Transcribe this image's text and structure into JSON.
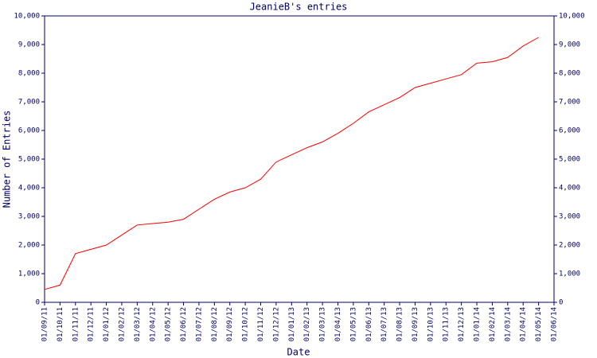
{
  "chart_data": {
    "type": "line",
    "title": "JeanieB's entries",
    "x_label": "Date",
    "y_label": "Number of Entries",
    "categories": [
      "01/09/11",
      "01/10/11",
      "01/11/11",
      "01/12/11",
      "01/01/12",
      "01/02/12",
      "01/03/12",
      "01/04/12",
      "01/05/12",
      "01/06/12",
      "01/07/12",
      "01/08/12",
      "01/09/12",
      "01/10/12",
      "01/11/12",
      "01/12/12",
      "01/01/13",
      "01/02/13",
      "01/03/13",
      "01/04/13",
      "01/05/13",
      "01/06/13",
      "01/07/13",
      "01/08/13",
      "01/09/13",
      "01/10/13",
      "01/11/13",
      "01/12/13",
      "01/01/14",
      "01/02/14",
      "01/03/14",
      "01/04/14",
      "01/05/14",
      "01/06/14"
    ],
    "series": [
      {
        "name": "Entries",
        "color": "#ff0000",
        "values": [
          450,
          600,
          1700,
          1850,
          2000,
          2350,
          2700,
          2750,
          2800,
          2900,
          3250,
          3600,
          3850,
          4000,
          4300,
          4900,
          5150,
          5400,
          5600,
          5900,
          6250,
          6650,
          6900,
          7150,
          7500,
          7650,
          7800,
          7950,
          8350,
          8400,
          8550,
          8950,
          9250,
          null
        ]
      }
    ],
    "ylim": [
      0,
      10000
    ],
    "yticks": [
      0,
      {
        "value": 1000,
        "label": "1,000"
      },
      {
        "value": 2000,
        "label": "2,000"
      },
      {
        "value": 3000,
        "label": "3,000"
      },
      {
        "value": 4000,
        "label": "4,000"
      },
      {
        "value": 5000,
        "label": "5,000"
      },
      {
        "value": 6000,
        "label": "6,000"
      },
      {
        "value": 7000,
        "label": "7,000"
      },
      {
        "value": 8000,
        "label": "8,000"
      },
      {
        "value": 9000,
        "label": "9,000"
      },
      {
        "value": 10000,
        "label": "10,000"
      }
    ],
    "right_axis": true
  }
}
